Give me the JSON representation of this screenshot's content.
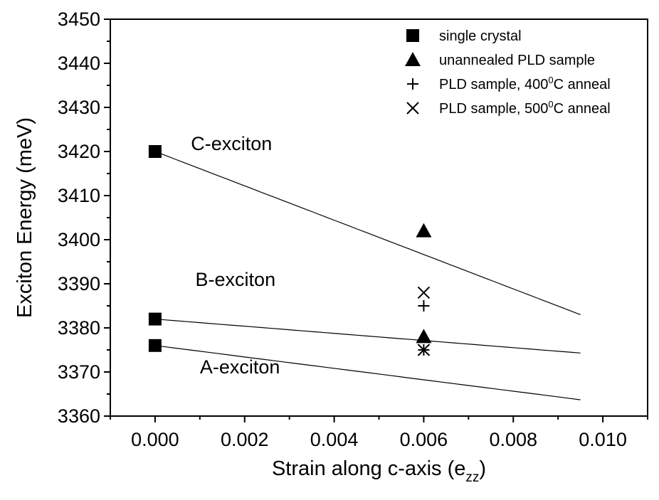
{
  "chart_data": {
    "type": "scatter",
    "xlabel": "Strain along c-axis (e",
    "xlabel_sub": "zz",
    "xlabel_close": ")",
    "ylabel": "Exciton Energy (meV)",
    "xlim": [
      -0.001,
      0.011
    ],
    "ylim": [
      3360,
      3450
    ],
    "x_ticks": [
      0.0,
      0.002,
      0.004,
      0.006,
      0.008,
      0.01
    ],
    "x_tick_labels": [
      "0.000",
      "0.002",
      "0.004",
      "0.006",
      "0.008",
      "0.010"
    ],
    "y_ticks": [
      3360,
      3370,
      3380,
      3390,
      3400,
      3410,
      3420,
      3430,
      3440,
      3450
    ],
    "y_tick_labels": [
      "3360",
      "3370",
      "3380",
      "3390",
      "3400",
      "3410",
      "3420",
      "3430",
      "3440",
      "3450"
    ],
    "legend_position": "top-right",
    "series": [
      {
        "name": "single crystal",
        "marker": "square",
        "points": [
          [
            0.0,
            3420
          ],
          [
            0.0,
            3382
          ],
          [
            0.0,
            3376
          ]
        ]
      },
      {
        "name": "unannealed PLD sample",
        "marker": "triangle",
        "points": [
          [
            0.006,
            3402
          ],
          [
            0.006,
            3378
          ]
        ]
      },
      {
        "name": "PLD sample, 400",
        "name_sup": "0",
        "name_suffix": "C anneal",
        "marker": "plus",
        "points": [
          [
            0.006,
            3385
          ],
          [
            0.006,
            3375
          ]
        ]
      },
      {
        "name": "PLD sample, 500",
        "name_sup": "0",
        "name_suffix": "C anneal",
        "marker": "cross",
        "points": [
          [
            0.006,
            3388
          ],
          [
            0.006,
            3375
          ]
        ]
      }
    ],
    "fit_lines": [
      {
        "label": "C-exciton",
        "x": [
          0.0,
          0.0095
        ],
        "y": [
          3420,
          3383
        ]
      },
      {
        "label": "B-exciton",
        "x": [
          0.0,
          0.0095
        ],
        "y": [
          3382,
          3374.3
        ]
      },
      {
        "label": "A-exciton",
        "x": [
          0.0,
          0.0095
        ],
        "y": [
          3376,
          3363.7
        ]
      }
    ],
    "annotations": [
      {
        "text": "C-exciton",
        "x": 0.0008,
        "y": 3420.3
      },
      {
        "text": "B-exciton",
        "x": 0.0009,
        "y": 3389.5
      },
      {
        "text": "A-exciton",
        "x": 0.001,
        "y": 3369.7
      }
    ]
  }
}
